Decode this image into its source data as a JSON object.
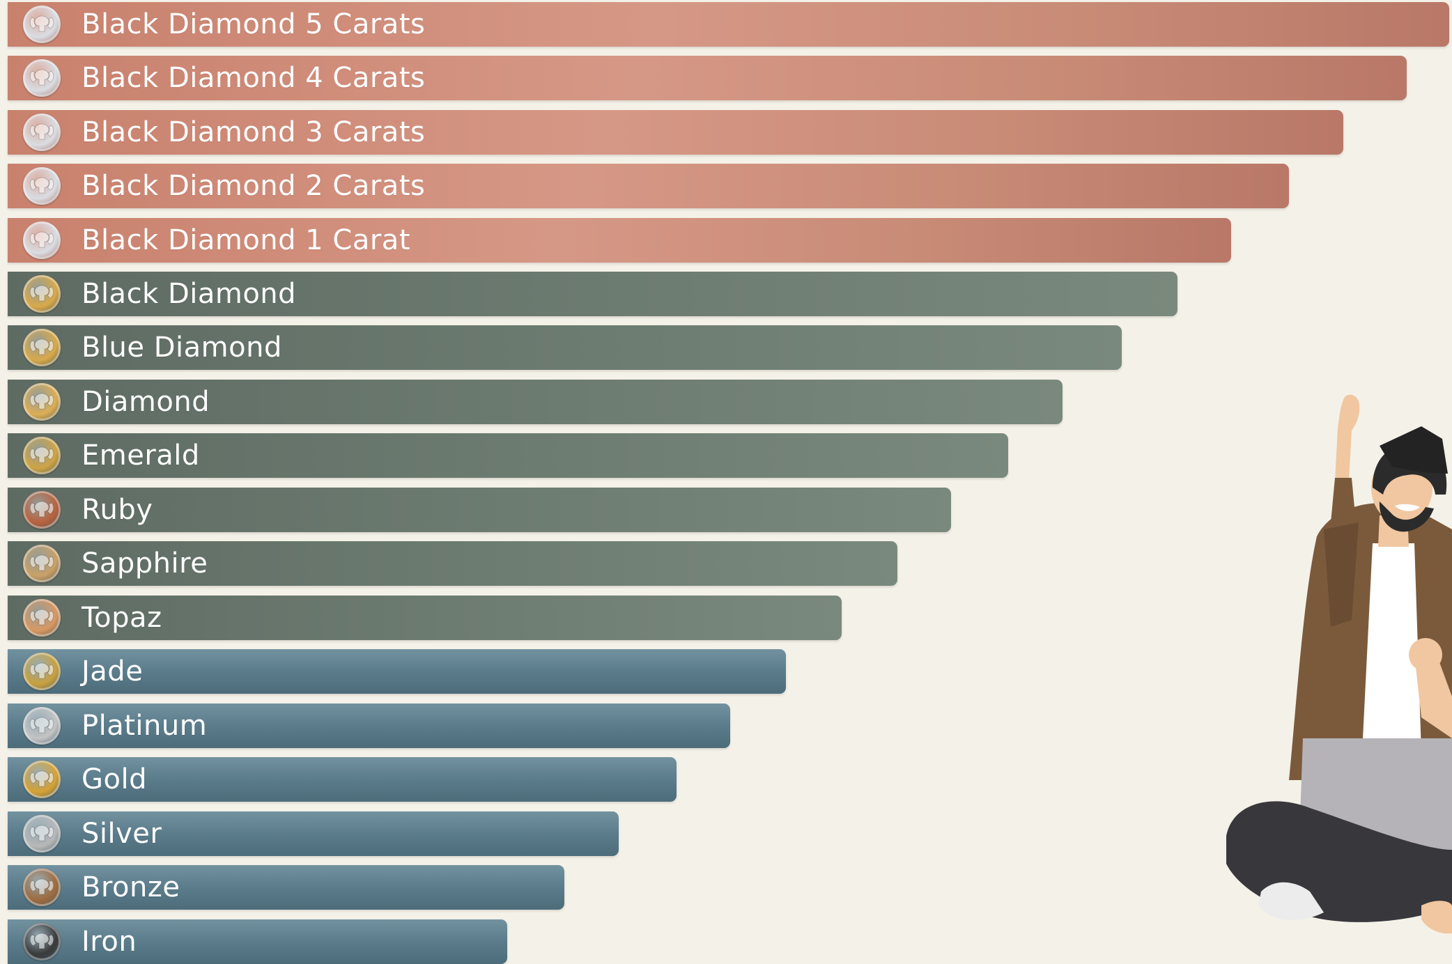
{
  "tiers": [
    {
      "label": "Black Diamond 5 Carats",
      "group": "a",
      "badge": "silver-wing-badge-icon",
      "badge_color": "#d9dde3"
    },
    {
      "label": "Black Diamond 4 Carats",
      "group": "a",
      "badge": "silver-wing-badge-icon",
      "badge_color": "#d9dde3"
    },
    {
      "label": "Black Diamond 3 Carats",
      "group": "a",
      "badge": "silver-wing-badge-icon",
      "badge_color": "#d9dde3"
    },
    {
      "label": "Black Diamond 2 Carats",
      "group": "a",
      "badge": "silver-wing-badge-icon",
      "badge_color": "#d9dde3"
    },
    {
      "label": "Black Diamond 1 Carat",
      "group": "a",
      "badge": "silver-wing-badge-icon",
      "badge_color": "#d9dde3"
    },
    {
      "label": "Black Diamond",
      "group": "b",
      "badge": "gold-wing-badge-icon",
      "badge_color": "#d9a94a"
    },
    {
      "label": "Blue Diamond",
      "group": "b",
      "badge": "gold-wing-badge-icon",
      "badge_color": "#d9a94a"
    },
    {
      "label": "Diamond",
      "group": "b",
      "badge": "gold-wing-badge-icon",
      "badge_color": "#dcae55"
    },
    {
      "label": "Emerald",
      "group": "b",
      "badge": "gold-wing-badge-icon",
      "badge_color": "#cfa445"
    },
    {
      "label": "Ruby",
      "group": "b",
      "badge": "ruby-wing-badge-icon",
      "badge_color": "#b8623f"
    },
    {
      "label": "Sapphire",
      "group": "b",
      "badge": "gold-wing-badge-icon",
      "badge_color": "#c9a067"
    },
    {
      "label": "Topaz",
      "group": "b",
      "badge": "topaz-wing-badge-icon",
      "badge_color": "#d99862"
    },
    {
      "label": "Jade",
      "group": "c",
      "badge": "gold-wing-badge-icon",
      "badge_color": "#c9a13e"
    },
    {
      "label": "Platinum",
      "group": "c",
      "badge": "platinum-wing-badge-icon",
      "badge_color": "#c4c4c4"
    },
    {
      "label": "Gold",
      "group": "c",
      "badge": "gold-wing-badge-icon",
      "badge_color": "#d6a234"
    },
    {
      "label": "Silver",
      "group": "c",
      "badge": "silver-wing-badge-icon",
      "badge_color": "#b8b8b8"
    },
    {
      "label": "Bronze",
      "group": "c",
      "badge": "bronze-wing-badge-icon",
      "badge_color": "#9e6b3e"
    },
    {
      "label": "Iron",
      "group": "c",
      "badge": "iron-wing-badge-icon",
      "badge_color": "#3a3a3a"
    }
  ],
  "illustration": {
    "name": "celebrating-person-with-laptop-illustration"
  }
}
